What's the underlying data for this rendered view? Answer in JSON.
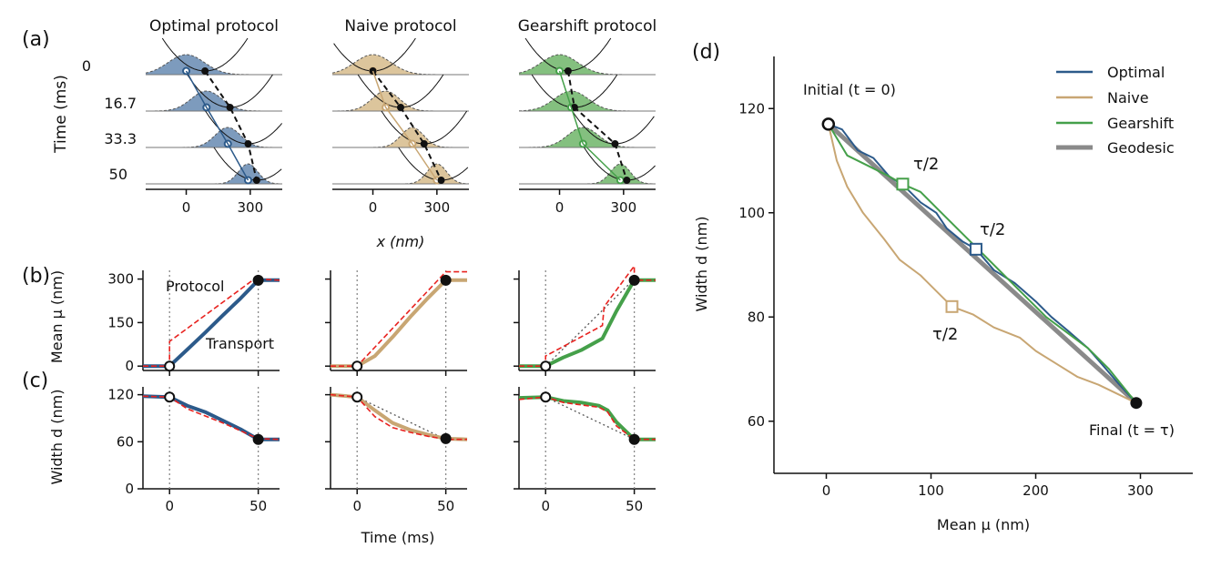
{
  "colors": {
    "optimal": "#2c5a8a",
    "optimal_fill": "#7d9bbd",
    "naive": "#c8a673",
    "naive_fill": "#dcc59c",
    "gearshift": "#45a04a",
    "gearshift_fill": "#84c07f",
    "geodesic": "#8a8a8a",
    "protocol": "#e8221f",
    "axis": "#111111"
  },
  "panel_labels": {
    "a": "(a)",
    "b": "(b)",
    "c": "(c)",
    "d": "(d)"
  },
  "chart_data": [
    {
      "id": "a",
      "type": "distributions",
      "columns": [
        "Optimal protocol",
        "Naive protocol",
        "Gearshift protocol"
      ],
      "ylabel": "Time (ms)",
      "xlabel": "x (nm)",
      "time_labels": [
        "0",
        "16.7",
        "33.3",
        "50"
      ],
      "xlim": [
        -190,
        450
      ],
      "xticks": [
        "0",
        "300"
      ],
      "xtick_values": [
        0,
        300
      ],
      "distribution_mean": [
        [
          0,
          95,
          195,
          290
        ],
        [
          0,
          60,
          185,
          300
        ],
        [
          0,
          55,
          110,
          285
        ]
      ],
      "distribution_width": [
        [
          118,
          100,
          83,
          63
        ],
        [
          118,
          90,
          73,
          63
        ],
        [
          118,
          110,
          100,
          63
        ]
      ],
      "trap_center": [
        [
          88,
          205,
          290,
          330
        ],
        [
          0,
          130,
          240,
          320
        ],
        [
          40,
          70,
          260,
          315
        ]
      ]
    },
    {
      "id": "b",
      "type": "line",
      "ylabel": "Mean μ (nm)",
      "xlim": [
        -15,
        62
      ],
      "ylim": [
        -15,
        330
      ],
      "yticks": [
        "0",
        "150",
        "300"
      ],
      "ytick_values": [
        0,
        150,
        300
      ],
      "annotations": {
        "protocol": "Protocol",
        "transport": "Transport"
      },
      "series": [
        {
          "name": "Optimal",
          "transport": [
            [
              -15,
              0
            ],
            [
              0,
              0
            ],
            [
              10,
              57
            ],
            [
              20,
              115
            ],
            [
              30,
              175
            ],
            [
              40,
              233
            ],
            [
              50,
              296
            ],
            [
              62,
              296
            ]
          ],
          "protocol": [
            [
              -15,
              0
            ],
            [
              0,
              0
            ],
            [
              0,
              85
            ],
            [
              50,
              310
            ],
            [
              50,
              300
            ],
            [
              62,
              296
            ]
          ]
        },
        {
          "name": "Naive",
          "transport": [
            [
              -15,
              0
            ],
            [
              0,
              0
            ],
            [
              10,
              35
            ],
            [
              20,
              100
            ],
            [
              30,
              170
            ],
            [
              40,
              235
            ],
            [
              50,
              296
            ],
            [
              62,
              296
            ]
          ],
          "protocol": [
            [
              -15,
              0
            ],
            [
              0,
              0
            ],
            [
              50,
              325
            ],
            [
              62,
              325
            ]
          ]
        },
        {
          "name": "Gearshift",
          "transport": [
            [
              -15,
              0
            ],
            [
              0,
              0
            ],
            [
              10,
              30
            ],
            [
              20,
              55
            ],
            [
              32,
              95
            ],
            [
              40,
              190
            ],
            [
              50,
              296
            ],
            [
              62,
              296
            ]
          ],
          "protocol": [
            [
              -15,
              0
            ],
            [
              0,
              0
            ],
            [
              0,
              35
            ],
            [
              32,
              140
            ],
            [
              33,
              205
            ],
            [
              50,
              345
            ],
            [
              50,
              296
            ],
            [
              62,
              296
            ]
          ],
          "reference": [
            [
              0,
              0
            ],
            [
              50,
              300
            ]
          ]
        }
      ]
    },
    {
      "id": "c",
      "type": "line",
      "ylabel": "Width d (nm)",
      "xlabel": "Time (ms)",
      "xlim": [
        -15,
        62
      ],
      "ylim": [
        0,
        130
      ],
      "xticks": [
        "0",
        "50"
      ],
      "xtick_values": [
        0,
        50
      ],
      "yticks": [
        "0",
        "60",
        "120"
      ],
      "ytick_values": [
        0,
        60,
        120
      ],
      "series": [
        {
          "name": "Optimal",
          "transport": [
            [
              -15,
              118
            ],
            [
              0,
              117
            ],
            [
              10,
              106
            ],
            [
              20,
              98
            ],
            [
              30,
              87
            ],
            [
              40,
              76
            ],
            [
              50,
              63
            ],
            [
              62,
              63
            ]
          ],
          "protocol": [
            [
              -15,
              118
            ],
            [
              0,
              117
            ],
            [
              10,
              102
            ],
            [
              20,
              93
            ],
            [
              30,
              84
            ],
            [
              40,
              74
            ],
            [
              50,
              64
            ],
            [
              62,
              63
            ]
          ]
        },
        {
          "name": "Naive",
          "transport": [
            [
              -15,
              120
            ],
            [
              0,
              117
            ],
            [
              10,
              100
            ],
            [
              20,
              84
            ],
            [
              30,
              75
            ],
            [
              40,
              69
            ],
            [
              50,
              64
            ],
            [
              62,
              63
            ]
          ],
          "protocol": [
            [
              -15,
              120
            ],
            [
              0,
              117
            ],
            [
              10,
              92
            ],
            [
              20,
              78
            ],
            [
              30,
              72
            ],
            [
              40,
              67
            ],
            [
              50,
              63
            ],
            [
              62,
              63
            ]
          ],
          "reference": [
            [
              0,
              117
            ],
            [
              50,
              63
            ]
          ]
        },
        {
          "name": "Gearshift",
          "transport": [
            [
              -15,
              116
            ],
            [
              0,
              117
            ],
            [
              10,
              112
            ],
            [
              20,
              110
            ],
            [
              30,
              106
            ],
            [
              35,
              100
            ],
            [
              40,
              85
            ],
            [
              50,
              63
            ],
            [
              62,
              63
            ]
          ],
          "protocol": [
            [
              -15,
              114
            ],
            [
              0,
              117
            ],
            [
              10,
              110
            ],
            [
              20,
              107
            ],
            [
              30,
              104
            ],
            [
              35,
              98
            ],
            [
              40,
              80
            ],
            [
              50,
              63
            ],
            [
              62,
              63
            ]
          ],
          "reference": [
            [
              0,
              117
            ],
            [
              50,
              63
            ]
          ]
        }
      ]
    },
    {
      "id": "d",
      "type": "line",
      "xlabel": "Mean μ (nm)",
      "ylabel": "Width d (nm)",
      "xlim": [
        -50,
        350
      ],
      "ylim": [
        50,
        130
      ],
      "xticks": [
        "0",
        "100",
        "200",
        "300"
      ],
      "xtick_values": [
        0,
        100,
        200,
        300
      ],
      "yticks": [
        "60",
        "80",
        "100",
        "120"
      ],
      "ytick_values": [
        60,
        80,
        100,
        120
      ],
      "legend": [
        "Optimal",
        "Naive",
        "Gearshift",
        "Geodesic"
      ],
      "legend_position": "top-right",
      "annotations": {
        "initial": "Initial (t = 0)",
        "final": "Final (t = τ)",
        "half": "τ/2"
      },
      "series": [
        {
          "name": "Geodesic",
          "points": [
            [
              2,
              117
            ],
            [
              296,
              63.5
            ]
          ]
        },
        {
          "name": "Optimal",
          "points": [
            [
              2,
              117
            ],
            [
              15,
              116
            ],
            [
              30,
              112
            ],
            [
              45,
              110.5
            ],
            [
              60,
              107
            ],
            [
              75,
              105
            ],
            [
              90,
              102
            ],
            [
              105,
              100
            ],
            [
              115,
              97
            ],
            [
              130,
              94.5
            ],
            [
              143,
              93
            ],
            [
              160,
              89
            ],
            [
              180,
              86.5
            ],
            [
              200,
              83
            ],
            [
              215,
              80
            ],
            [
              230,
              77.5
            ],
            [
              250,
              74
            ],
            [
              265,
              70.5
            ],
            [
              280,
              67
            ],
            [
              296,
              63.5
            ]
          ]
        },
        {
          "name": "Naive",
          "points": [
            [
              2,
              117
            ],
            [
              10,
              110
            ],
            [
              20,
              105
            ],
            [
              35,
              100
            ],
            [
              55,
              95
            ],
            [
              70,
              91
            ],
            [
              90,
              88
            ],
            [
              110,
              84
            ],
            [
              120,
              82
            ],
            [
              140,
              80.5
            ],
            [
              160,
              78
            ],
            [
              185,
              76
            ],
            [
              200,
              73.5
            ],
            [
              220,
              71
            ],
            [
              240,
              68.5
            ],
            [
              260,
              67
            ],
            [
              296,
              63.5
            ]
          ]
        },
        {
          "name": "Gearshift",
          "points": [
            [
              2,
              117
            ],
            [
              20,
              111
            ],
            [
              40,
              109
            ],
            [
              60,
              107
            ],
            [
              73,
              105.5
            ],
            [
              90,
              104
            ],
            [
              110,
              100
            ],
            [
              130,
              96
            ],
            [
              150,
              92
            ],
            [
              170,
              88
            ],
            [
              190,
              84
            ],
            [
              210,
              80
            ],
            [
              230,
              77
            ],
            [
              250,
              74
            ],
            [
              270,
              70
            ],
            [
              296,
              63.5
            ]
          ]
        }
      ],
      "half_markers": [
        {
          "name": "Optimal",
          "point": [
            143,
            93
          ]
        },
        {
          "name": "Naive",
          "point": [
            120,
            82
          ]
        },
        {
          "name": "Gearshift",
          "point": [
            73,
            105.5
          ]
        }
      ],
      "initial_point": [
        2,
        117
      ],
      "final_point": [
        296,
        63.5
      ]
    }
  ]
}
